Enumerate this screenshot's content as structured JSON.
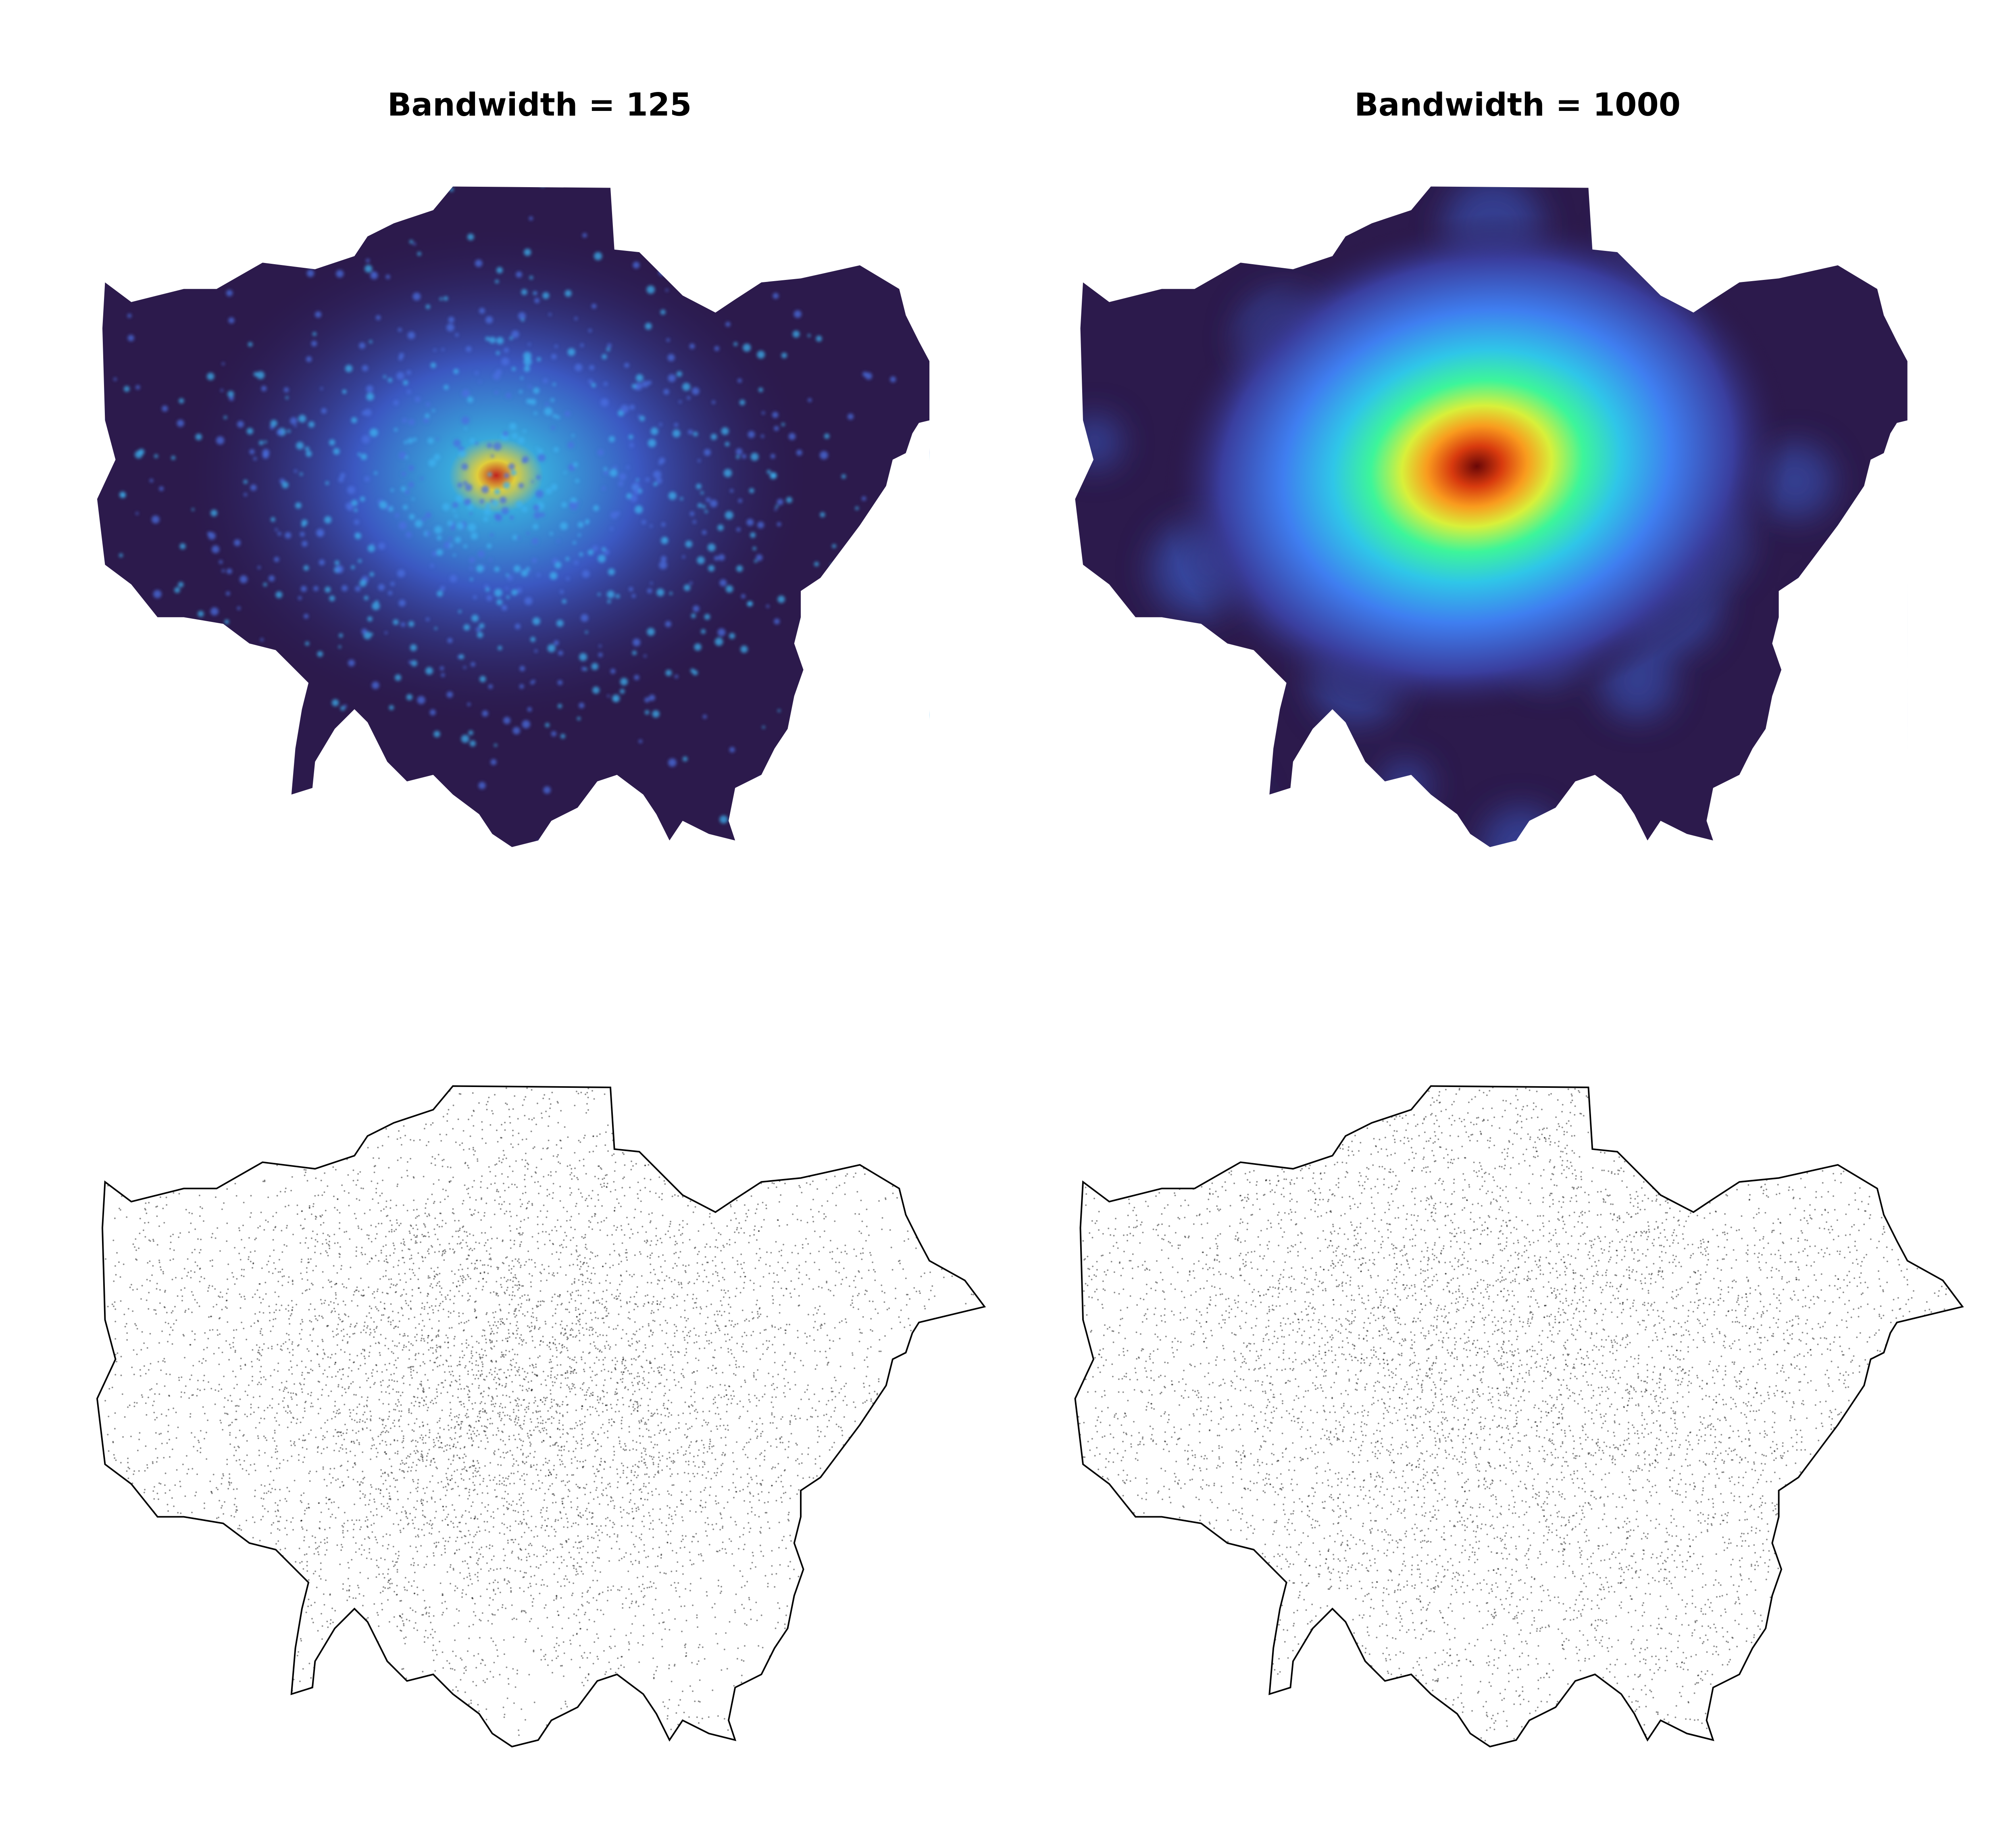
{
  "panels": [
    {
      "title": "Bandwidth = 125"
    },
    {
      "title": "Bandwidth = 1000"
    }
  ]
}
